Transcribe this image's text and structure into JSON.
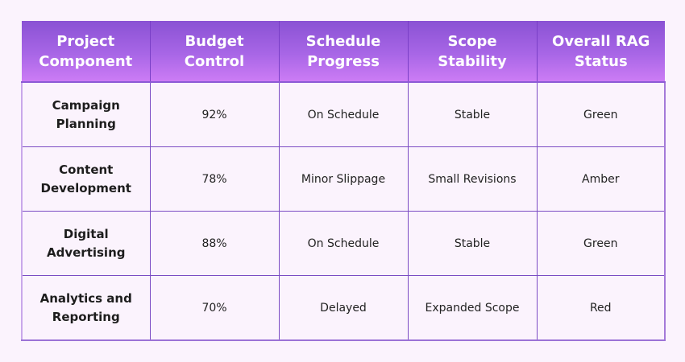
{
  "table": {
    "headers": [
      [
        "Project",
        "Component"
      ],
      [
        "Budget",
        "Control"
      ],
      [
        "Schedule",
        "Progress"
      ],
      [
        "Scope",
        "Stability"
      ],
      [
        "Overall RAG",
        "Status"
      ]
    ],
    "rows": [
      {
        "component": [
          "Campaign",
          "Planning"
        ],
        "budget": "92%",
        "schedule": "On Schedule",
        "scope": "Stable",
        "rag": "Green"
      },
      {
        "component": [
          "Content",
          "Development"
        ],
        "budget": "78%",
        "schedule": "Minor Slippage",
        "scope": "Small Revisions",
        "rag": "Amber"
      },
      {
        "component": [
          "Digital",
          "Advertising"
        ],
        "budget": "88%",
        "schedule": "On Schedule",
        "scope": "Stable",
        "rag": "Green"
      },
      {
        "component": [
          "Analytics and",
          "Reporting"
        ],
        "budget": "70%",
        "schedule": "Delayed",
        "scope": "Expanded Scope",
        "rag": "Red"
      }
    ]
  },
  "colors": {
    "header_gradient_top": "#8a52d4",
    "header_gradient_bottom": "#cc7cf5",
    "border": "#7b4cc4",
    "background": "#fbf3fd"
  }
}
